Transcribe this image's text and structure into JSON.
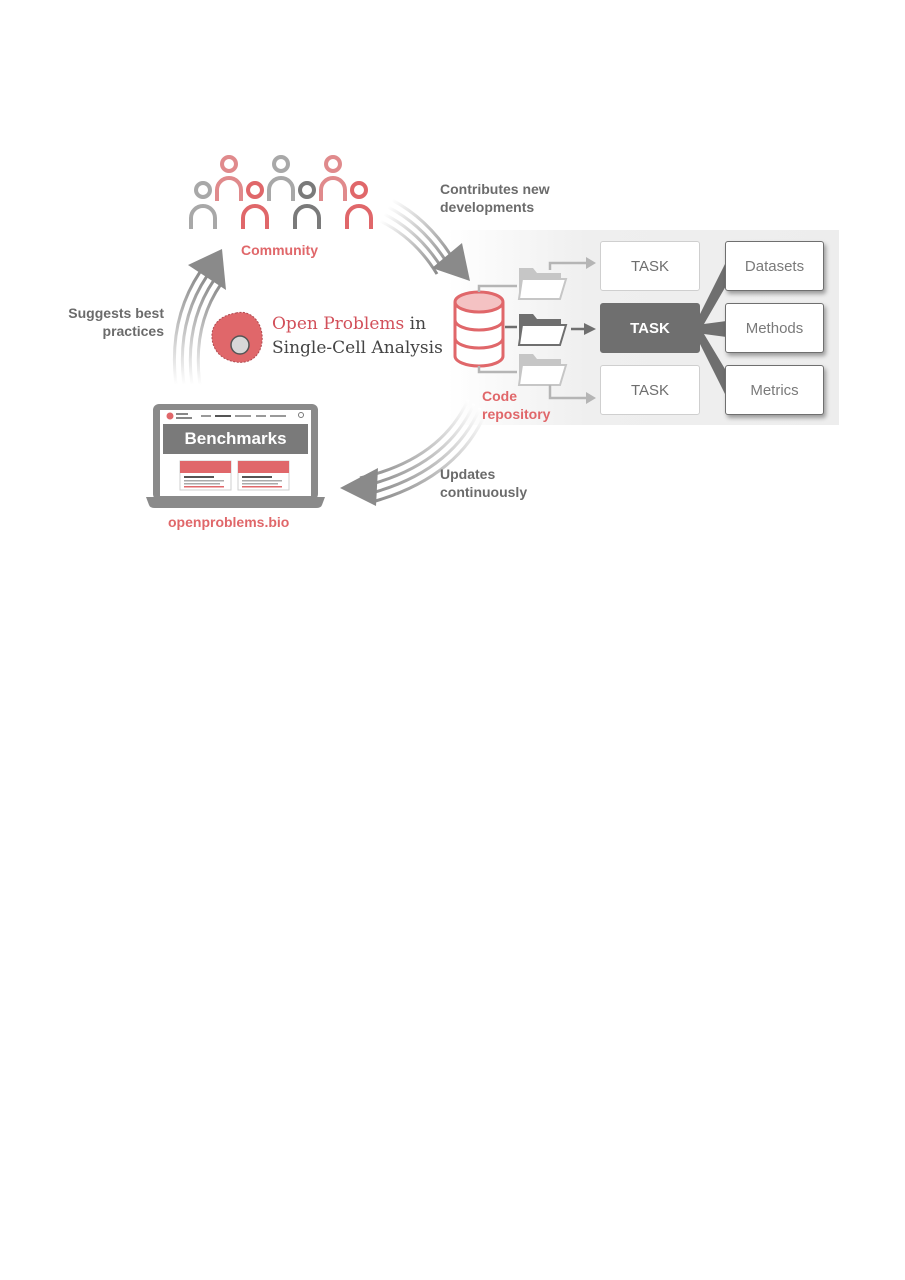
{
  "labels": {
    "community": "Community",
    "contributes": [
      "Contributes new",
      "developments"
    ],
    "suggests": [
      "Suggests best",
      "practices"
    ],
    "code_repository": [
      "Code",
      "repository"
    ],
    "updates": [
      "Updates",
      "continuously"
    ],
    "website": "openproblems.bio"
  },
  "logo": {
    "line1_red": "Open Problems",
    "line1_rest": " in",
    "line2": "Single-Cell Analysis"
  },
  "laptop": {
    "banner": "Benchmarks"
  },
  "tasks": [
    {
      "label": "TASK",
      "active": false
    },
    {
      "label": "TASK",
      "active": true
    },
    {
      "label": "TASK",
      "active": false
    }
  ],
  "components": [
    "Datasets",
    "Methods",
    "Metrics"
  ],
  "colors": {
    "accent_red": "#e0676a",
    "dark_grey": "#6f6f6f",
    "light_grey": "#b5b5b5",
    "panel_bg": "#efefef"
  }
}
